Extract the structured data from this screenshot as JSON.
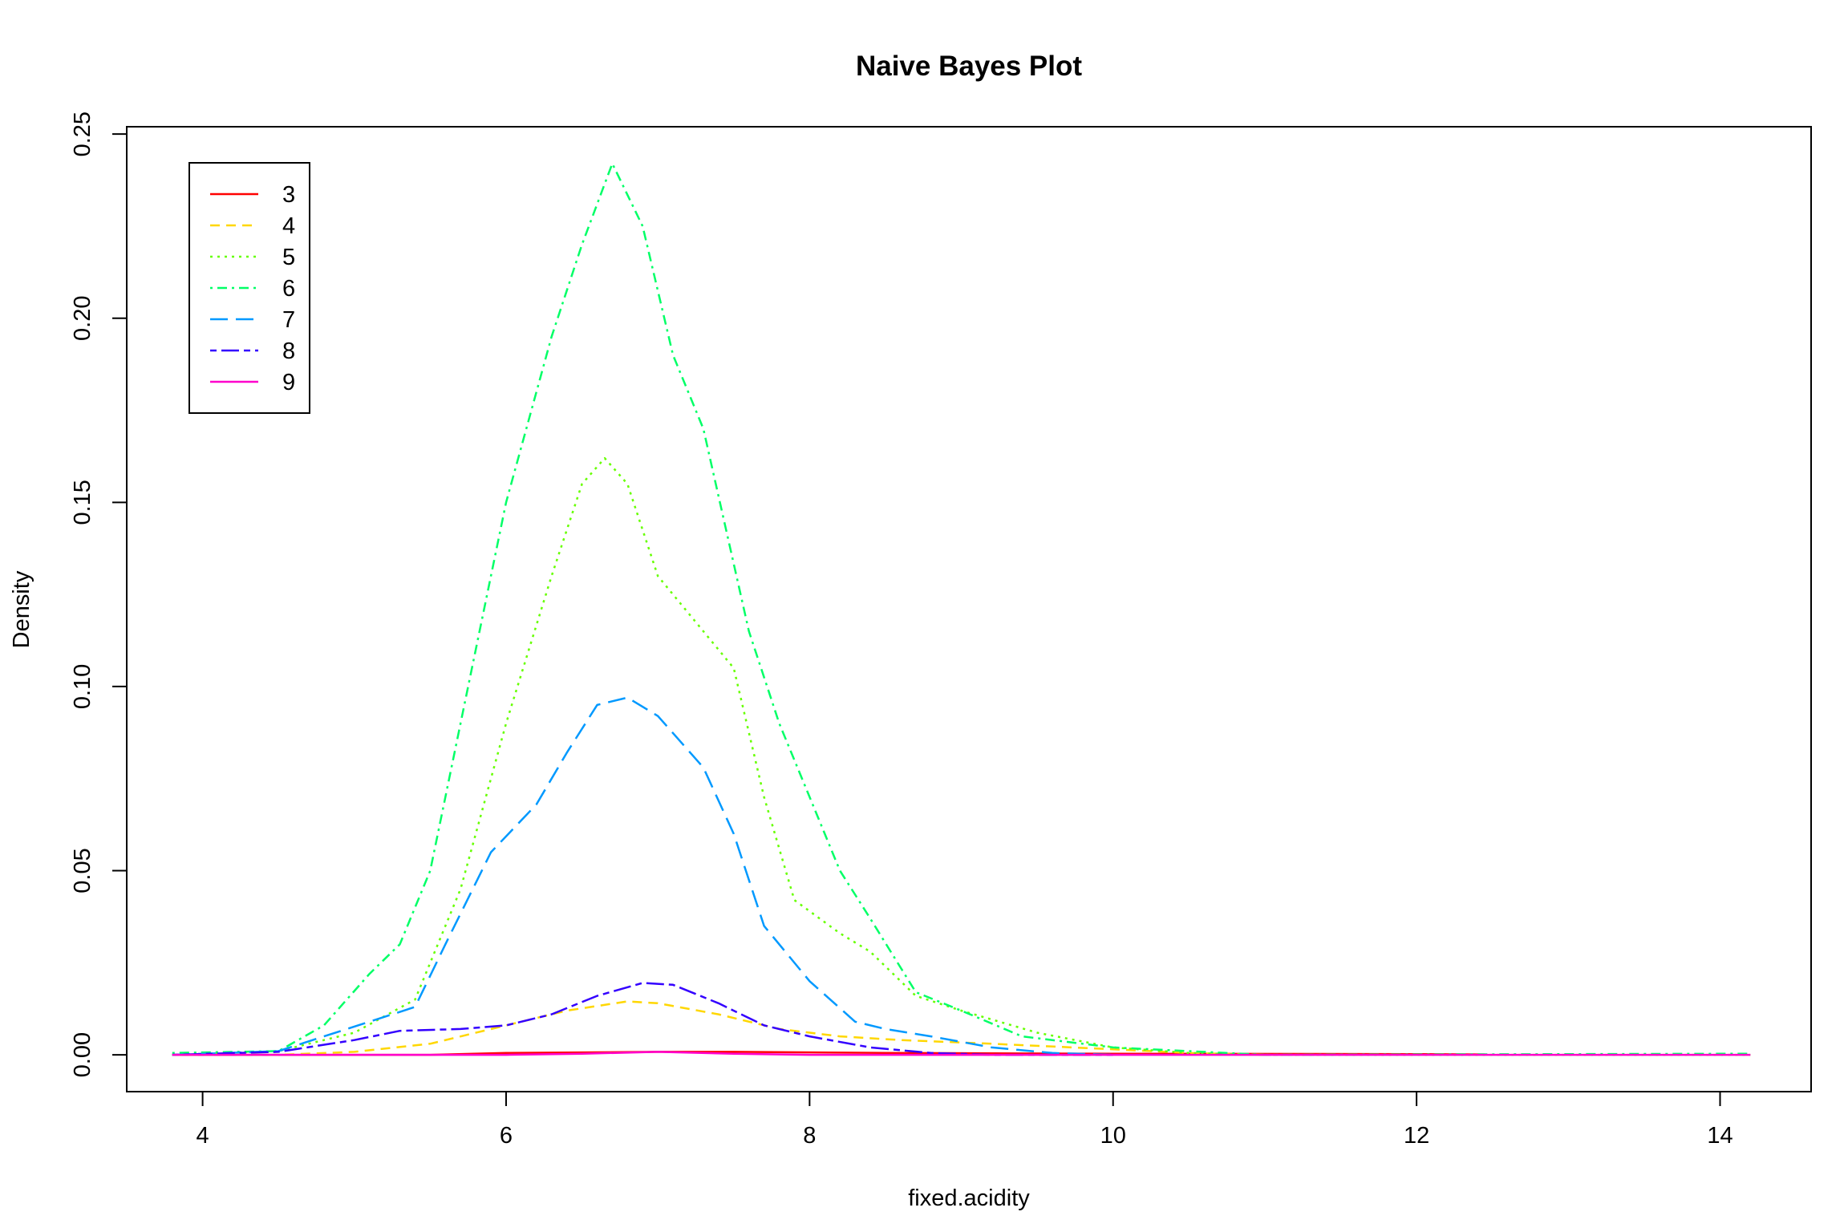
{
  "chart_data": {
    "type": "line",
    "title": "Naive Bayes Plot",
    "xlabel": "fixed.acidity",
    "ylabel": "Density",
    "xlim": [
      3.5,
      14.6
    ],
    "ylim": [
      -0.01,
      0.252
    ],
    "xticks": [
      4,
      6,
      8,
      10,
      12,
      14
    ],
    "xtick_labels": [
      "4",
      "6",
      "8",
      "10",
      "12",
      "14"
    ],
    "yticks": [
      0.0,
      0.05,
      0.1,
      0.15,
      0.2,
      0.25
    ],
    "ytick_labels": [
      "0.00",
      "0.05",
      "0.10",
      "0.15",
      "0.20",
      "0.25"
    ],
    "grid": false,
    "legend_position": "top-left",
    "series": [
      {
        "name": "3",
        "color": "#FF0000",
        "dash": "solid",
        "points": [
          [
            3.8,
            0.0
          ],
          [
            5.5,
            0.0
          ],
          [
            6.0,
            0.0005
          ],
          [
            7.0,
            0.0008
          ],
          [
            7.5,
            0.0008
          ],
          [
            8.5,
            0.0005
          ],
          [
            10.0,
            0.0003
          ],
          [
            12.0,
            0.0002
          ],
          [
            12.45,
            0.0001
          ]
        ]
      },
      {
        "name": "4",
        "color": "#FFD700",
        "dash": "dashed",
        "points": [
          [
            3.8,
            0.0
          ],
          [
            4.5,
            0.0
          ],
          [
            5.0,
            0.0008
          ],
          [
            5.5,
            0.003
          ],
          [
            6.0,
            0.008
          ],
          [
            6.4,
            0.012
          ],
          [
            6.8,
            0.0145
          ],
          [
            7.0,
            0.014
          ],
          [
            7.4,
            0.011
          ],
          [
            7.8,
            0.007
          ],
          [
            8.2,
            0.005
          ],
          [
            8.6,
            0.004
          ],
          [
            9.2,
            0.003
          ],
          [
            10.0,
            0.0015
          ],
          [
            10.5,
            0.0005
          ],
          [
            11.0,
            0.0
          ]
        ]
      },
      {
        "name": "5",
        "color": "#66FF00",
        "dash": "dotted",
        "points": [
          [
            3.8,
            0.0
          ],
          [
            4.5,
            0.001
          ],
          [
            5.0,
            0.006
          ],
          [
            5.4,
            0.015
          ],
          [
            5.7,
            0.045
          ],
          [
            6.0,
            0.09
          ],
          [
            6.3,
            0.13
          ],
          [
            6.5,
            0.155
          ],
          [
            6.65,
            0.162
          ],
          [
            6.8,
            0.155
          ],
          [
            7.0,
            0.13
          ],
          [
            7.2,
            0.12
          ],
          [
            7.5,
            0.105
          ],
          [
            7.7,
            0.07
          ],
          [
            7.9,
            0.042
          ],
          [
            8.2,
            0.033
          ],
          [
            8.4,
            0.028
          ],
          [
            8.7,
            0.016
          ],
          [
            9.0,
            0.012
          ],
          [
            9.5,
            0.006
          ],
          [
            10.0,
            0.002
          ],
          [
            10.5,
            0.0005
          ],
          [
            11.0,
            0.0
          ],
          [
            14.2,
            0.0
          ]
        ]
      },
      {
        "name": "6",
        "color": "#00FF66",
        "dash": "dotdash",
        "points": [
          [
            3.8,
            0.0005
          ],
          [
            4.5,
            0.001
          ],
          [
            4.8,
            0.008
          ],
          [
            5.1,
            0.022
          ],
          [
            5.3,
            0.03
          ],
          [
            5.5,
            0.05
          ],
          [
            5.7,
            0.09
          ],
          [
            6.0,
            0.15
          ],
          [
            6.3,
            0.195
          ],
          [
            6.5,
            0.22
          ],
          [
            6.7,
            0.242
          ],
          [
            6.9,
            0.225
          ],
          [
            7.1,
            0.19
          ],
          [
            7.3,
            0.17
          ],
          [
            7.6,
            0.115
          ],
          [
            7.8,
            0.09
          ],
          [
            8.0,
            0.07
          ],
          [
            8.2,
            0.05
          ],
          [
            8.4,
            0.037
          ],
          [
            8.7,
            0.017
          ],
          [
            9.0,
            0.012
          ],
          [
            9.4,
            0.005
          ],
          [
            10.0,
            0.002
          ],
          [
            10.5,
            0.001
          ],
          [
            11.0,
            0.0
          ],
          [
            14.2,
            0.0003
          ]
        ]
      },
      {
        "name": "7",
        "color": "#0099FF",
        "dash": "longdash",
        "points": [
          [
            3.8,
            0.0
          ],
          [
            4.5,
            0.001
          ],
          [
            4.8,
            0.005
          ],
          [
            5.1,
            0.009
          ],
          [
            5.4,
            0.013
          ],
          [
            5.6,
            0.03
          ],
          [
            5.9,
            0.055
          ],
          [
            6.2,
            0.068
          ],
          [
            6.4,
            0.082
          ],
          [
            6.6,
            0.095
          ],
          [
            6.8,
            0.097
          ],
          [
            7.0,
            0.092
          ],
          [
            7.3,
            0.078
          ],
          [
            7.5,
            0.06
          ],
          [
            7.7,
            0.035
          ],
          [
            8.0,
            0.02
          ],
          [
            8.3,
            0.009
          ],
          [
            8.5,
            0.007
          ],
          [
            8.8,
            0.005
          ],
          [
            9.2,
            0.002
          ],
          [
            9.6,
            0.0005
          ],
          [
            10.0,
            0.0
          ]
        ]
      },
      {
        "name": "8",
        "color": "#3300FF",
        "dash": "twodash",
        "points": [
          [
            3.8,
            0.0
          ],
          [
            4.5,
            0.0008
          ],
          [
            5.0,
            0.004
          ],
          [
            5.3,
            0.0065
          ],
          [
            5.7,
            0.007
          ],
          [
            6.0,
            0.008
          ],
          [
            6.3,
            0.011
          ],
          [
            6.6,
            0.016
          ],
          [
            6.9,
            0.0195
          ],
          [
            7.1,
            0.019
          ],
          [
            7.4,
            0.014
          ],
          [
            7.7,
            0.008
          ],
          [
            8.0,
            0.005
          ],
          [
            8.4,
            0.002
          ],
          [
            8.8,
            0.0005
          ],
          [
            9.2,
            0.0
          ],
          [
            10.0,
            0.0
          ]
        ]
      },
      {
        "name": "9",
        "color": "#FF00CC",
        "dash": "solid",
        "points": [
          [
            3.8,
            0.0
          ],
          [
            6.0,
            0.0
          ],
          [
            6.5,
            0.0003
          ],
          [
            7.0,
            0.0008
          ],
          [
            7.5,
            0.0003
          ],
          [
            8.0,
            0.0
          ],
          [
            14.2,
            0.0
          ]
        ]
      }
    ]
  }
}
